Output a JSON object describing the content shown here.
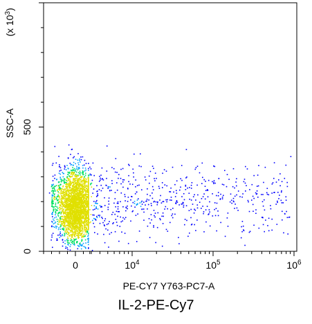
{
  "chart_data": {
    "type": "scatter",
    "style": "density-dot-plot",
    "xlabel": "PE-CY7 Y763-PC7-A",
    "ylabel": "SSC-A",
    "y_multiplier_label": "(x 10",
    "y_multiplier_exp": "3",
    "y_multiplier_close": ")",
    "xscale": "biexponential",
    "x_ticks": [
      {
        "value": 0,
        "base": "0",
        "exp": ""
      },
      {
        "value": 10000,
        "base": "10",
        "exp": "4"
      },
      {
        "value": 100000,
        "base": "10",
        "exp": "5"
      },
      {
        "value": 1000000,
        "base": "10",
        "exp": "6"
      }
    ],
    "y_ticks": [
      {
        "value": 0,
        "label": "0"
      },
      {
        "value": 500,
        "label": "500"
      }
    ],
    "ylim": [
      0,
      1000
    ],
    "xlim": [
      -2000,
      1000000
    ],
    "grid": false,
    "populations": [
      {
        "name": "",
        "x_center": 0,
        "x_spread": 600,
        "y_center": 180,
        "y_spread": 70,
        "count": 2600,
        "role": "dense negative cluster"
      },
      {
        "name": "",
        "x_range": [
          1000,
          900000
        ],
        "y_center": 200,
        "y_spread": 75,
        "count": 900,
        "role": "sparse positive tail"
      }
    ],
    "colors": {
      "sparse": "#0000ff",
      "medium": "#00a0ff",
      "dense": "#00e060",
      "densest": "#e0e000"
    }
  },
  "caption": "IL-2-PE-Cy7"
}
